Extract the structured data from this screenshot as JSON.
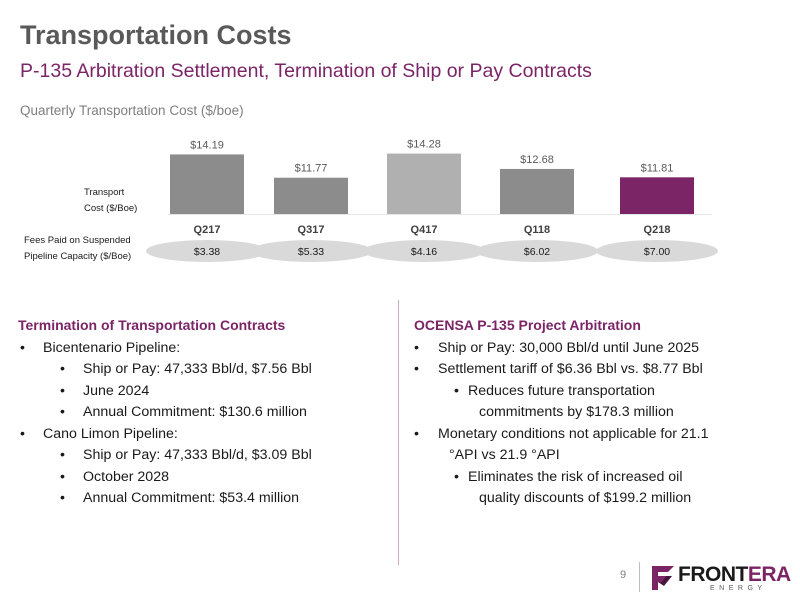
{
  "header": {
    "title": "Transportation Costs",
    "subtitle": "P-135 Arbitration Settlement, Termination of Ship or Pay Contracts"
  },
  "chart_data": {
    "type": "bar",
    "title": "Quarterly Transportation Cost ($/boe)",
    "row_label_bars": "Transport Cost ($/Boe)",
    "row_label_fees": "Fees Paid on Suspended Pipeline Capacity ($/Boe)",
    "categories": [
      "Q217",
      "Q317",
      "Q417",
      "Q118",
      "Q218"
    ],
    "values": [
      14.19,
      11.77,
      14.28,
      12.68,
      11.81
    ],
    "value_labels": [
      "$14.19",
      "$11.77",
      "$14.28",
      "$12.68",
      "$11.81"
    ],
    "bar_colors": [
      "#8c8c8c",
      "#8c8c8c",
      "#b0b0b0",
      "#8c8c8c",
      "#7b2466"
    ],
    "fees": [
      "$3.38",
      "$5.33",
      "$4.16",
      "$6.02",
      "$7.00"
    ],
    "ylim": [
      0,
      16
    ]
  },
  "left": {
    "heading": "Termination of Transportation Contracts",
    "items": [
      {
        "text": "Bicentenario Pipeline:",
        "sub": [
          "Ship or Pay: 47,333 Bbl/d, $7.56 Bbl",
          "June 2024",
          "Annual Commitment: $130.6 million"
        ]
      },
      {
        "text": "Cano Limon Pipeline:",
        "sub": [
          "Ship or Pay: 47,333 Bbl/d, $3.09 Bbl",
          "October 2028",
          "Annual Commitment: $53.4 million"
        ]
      }
    ]
  },
  "right": {
    "heading": "OCENSA P-135 Project Arbitration",
    "b1": "Ship or Pay: 30,000 Bbl/d until June 2025",
    "b2": "Settlement tariff of $6.36 Bbl vs. $8.77 Bbl",
    "b2_sub_l1": "Reduces future transportation",
    "b2_sub_l2": "commitments by $178.3 million",
    "b3_l1": "Monetary conditions not applicable for 21.1",
    "b3_l2": "°API vs 21.9 °API",
    "b3_sub_l1": "Eliminates the risk of increased oil",
    "b3_sub_l2": "quality discounts of $199.2 million"
  },
  "footer": {
    "page_number": "9",
    "logo_text_a": "FRONT",
    "logo_text_b": "ERA",
    "logo_sub": "ENERGY"
  },
  "colors": {
    "title_gray": "#595959",
    "accent_purple": "#7b2466",
    "bar_gray": "#8c8c8c",
    "bar_light_gray": "#b0b0b0",
    "ellipse_gray": "#d9d9d9"
  }
}
